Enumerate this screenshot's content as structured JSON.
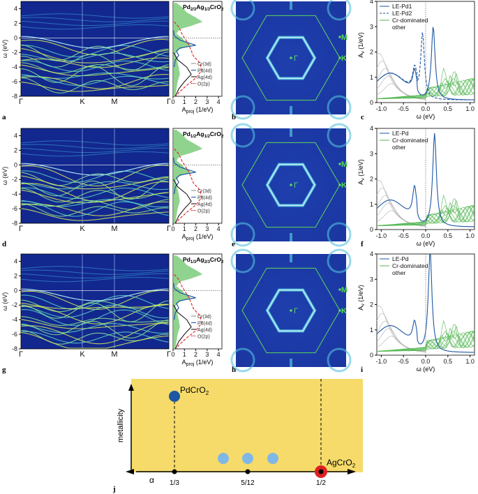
{
  "rows": [
    {
      "bands": {
        "labels": [
          "a"
        ],
        "ylabel": "ω (eV)",
        "yticks": [
          "4",
          "2",
          "0",
          "-2",
          "-4",
          "-6",
          "-8"
        ],
        "kpoints": [
          "Γ",
          "K",
          "M",
          "Γ"
        ]
      },
      "dos": {
        "title": [
          "Pd",
          "2/3",
          "Ag",
          "1/3",
          "CrO",
          "2"
        ],
        "xlabel": [
          "A",
          "proj",
          " (1/eV)"
        ],
        "xticks": [
          "0",
          "1",
          "2",
          "3",
          "4"
        ],
        "legend": [
          "Cr(3d)",
          "Pd(4d)",
          "Ag(4d)",
          "O(2p)"
        ]
      },
      "fs": {
        "label": "b",
        "points": [
          "M",
          "K",
          "Γ"
        ]
      },
      "spec": {
        "label": "c",
        "ylabel": "(1/eV)",
        "xlabel": "ω (eV)",
        "yticks": [
          "4",
          "3",
          "2",
          "1",
          "0"
        ],
        "xticks": [
          "-1.0",
          "-0.5",
          "0.0",
          "0.5",
          "1.0"
        ],
        "legend": [
          "LE-Pd1",
          "LE-Pd2",
          "Cr-dominated",
          "other"
        ]
      }
    },
    {
      "bands": {
        "labels": [
          "d"
        ],
        "ylabel": "ω (eV)",
        "yticks": [
          "4",
          "2",
          "0",
          "-2",
          "-4",
          "-6",
          "-8"
        ],
        "kpoints": [
          "Γ",
          "K",
          "M",
          "Γ"
        ]
      },
      "dos": {
        "title": [
          "Pd",
          "1/2",
          "Ag",
          "1/2",
          "CrO",
          "2"
        ],
        "xlabel": [
          "A",
          "proj",
          " (1/eV)"
        ],
        "xticks": [
          "0",
          "1",
          "2",
          "3",
          "4"
        ],
        "legend": [
          "Cr(3d)",
          "Pd(4d)",
          "Ag(4d)",
          "O(2p)"
        ]
      },
      "fs": {
        "label": "e",
        "points": [
          "M",
          "K",
          "Γ"
        ]
      },
      "spec": {
        "label": "f",
        "ylabel": "(1/eV)",
        "xlabel": "ω (eV)",
        "yticks": [
          "4",
          "3",
          "2",
          "1",
          "0"
        ],
        "xticks": [
          "-1.0",
          "-0.5",
          "0.0",
          "0.5",
          "1.0"
        ],
        "legend": [
          "LE-Pd",
          "Cr-dominated",
          "other"
        ]
      }
    },
    {
      "bands": {
        "labels": [
          "g"
        ],
        "ylabel": "ω (eV)",
        "yticks": [
          "4",
          "2",
          "0",
          "-2",
          "-4",
          "-6",
          "-8"
        ],
        "kpoints": [
          "Γ",
          "K",
          "M",
          "Γ"
        ]
      },
      "dos": {
        "title": [
          "Pd",
          "1/3",
          "Ag",
          "2/3",
          "CrO",
          "2"
        ],
        "xlabel": [
          "A",
          "proj",
          " (1/eV)"
        ],
        "xticks": [
          "0",
          "1",
          "2",
          "3",
          "4"
        ],
        "legend": [
          "Cr(3d)",
          "Pd(4d)",
          "Ag(4d)",
          "O(2p)"
        ]
      },
      "fs": {
        "label": "h",
        "points": [
          "M",
          "K",
          "Γ"
        ]
      },
      "spec": {
        "label": "i",
        "ylabel": "(1/eV)",
        "xlabel": "ω (eV)",
        "yticks": [
          "4",
          "3",
          "2",
          "1",
          "0"
        ],
        "xticks": [
          "-1.0",
          "-0.5",
          "0.0",
          "0.5",
          "1.0"
        ],
        "legend": [
          "LE-Pd",
          "Cr-dominated",
          "other"
        ]
      }
    }
  ],
  "spec_axis_symbol": "A",
  "spec_axis_sub": "ν",
  "phase": {
    "label": "j",
    "ylabel": "metallicity",
    "xlabel": "α",
    "xticks": [
      "1/3",
      "5/12",
      "1/2"
    ],
    "annotations": [
      "PdCrO",
      "AgCrO"
    ],
    "annotation_sub": "2",
    "colors": {
      "background": "#f6db6a",
      "pd": "#1d57a3",
      "mid": "#7fb8e6",
      "ag": "#e02020"
    }
  },
  "chart_data": {
    "type": "scatter",
    "title": "",
    "xlabel": "α",
    "ylabel": "metallicity",
    "points": [
      {
        "x": "1/3",
        "label": "PdCrO2",
        "level": "high"
      },
      {
        "x": "3/8",
        "level": "low"
      },
      {
        "x": "5/12",
        "level": "low"
      },
      {
        "x": "11/24",
        "level": "low"
      },
      {
        "x": "1/2",
        "label": "AgCrO2",
        "level": "zero"
      }
    ]
  }
}
